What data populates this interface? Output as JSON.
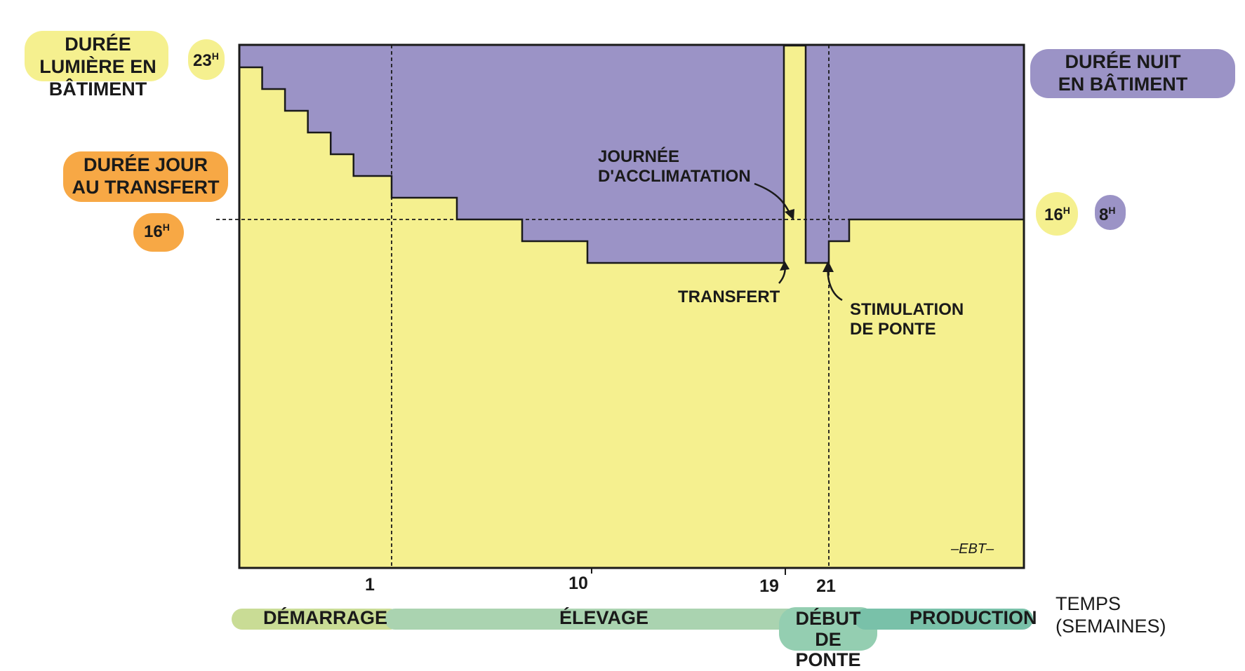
{
  "labels": {
    "light_title": "DURÉE LUMIÈRE EN BÂTIMENT",
    "night_title": "DURÉE NUIT EN BÂTIMENT",
    "day_at_transfer": "DURÉE JOUR AU TRANSFERT",
    "value_23": "23",
    "value_16_left": "16",
    "value_16_right": "16",
    "value_8": "8",
    "hour_suffix": "H",
    "acclimatation": "JOURNÉE D'ACCLIMATATION",
    "transfert": "TRANSFERT",
    "stimulation": "STIMULATION DE PONTE",
    "time_axis": "TEMPS (SEMAINES)",
    "signature": "–EBT–"
  },
  "phases": [
    {
      "name": "DÉMARRAGE",
      "color": "#c9dc95"
    },
    {
      "name": "ÉLEVAGE",
      "color": "#aad3b0"
    },
    {
      "name": "DÉBUT DE PONTE",
      "color": "#94ceb1"
    },
    {
      "name": "PRODUCTION",
      "color": "#79c1a9"
    }
  ],
  "colors": {
    "light": "#f5f08f",
    "night": "#9b93c6",
    "orange": "#f7a845",
    "yellow_tag": "#f5f08f",
    "purple_tag": "#9b93c6"
  },
  "chart_data": {
    "type": "area",
    "xlabel": "TEMPS (SEMAINES)",
    "ylabel": "DURÉE LUMIÈRE EN BÂTIMENT",
    "x_ticks": [
      "1",
      "10",
      "19",
      "21"
    ],
    "y_marks": [
      {
        "value": 23,
        "label": "23H"
      },
      {
        "value": 16,
        "label": "16H"
      }
    ],
    "y_range_hours": [
      0,
      24
    ],
    "series": [
      {
        "name": "DURÉE LUMIÈRE EN BÂTIMENT",
        "step_profile": [
          {
            "weeks_from": 0,
            "hours": 23
          },
          {
            "weeks_from": 0.15,
            "hours": 22
          },
          {
            "weeks_from": 0.3,
            "hours": 21
          },
          {
            "weeks_from": 0.45,
            "hours": 20
          },
          {
            "weeks_from": 0.6,
            "hours": 19
          },
          {
            "weeks_from": 0.75,
            "hours": 18
          },
          {
            "weeks_from": 1,
            "hours": 17
          },
          {
            "weeks_from": 4,
            "hours": 16
          },
          {
            "weeks_from": 7,
            "hours": 15
          },
          {
            "weeks_from": 10,
            "hours": 14
          },
          {
            "weeks_from": 19,
            "hours": 24
          },
          {
            "weeks_from": 19.5,
            "hours": 14
          },
          {
            "weeks_from": 21,
            "hours": 15
          },
          {
            "weeks_from": 22,
            "hours": 16
          }
        ]
      },
      {
        "name": "DURÉE NUIT EN BÂTIMENT",
        "complement_of": "DURÉE LUMIÈRE EN BÂTIMENT",
        "total_hours": 24
      }
    ],
    "reference_lines": [
      {
        "hours": 16,
        "label": "DURÉE JOUR AU TRANSFERT"
      }
    ],
    "annotations": [
      "JOURNÉE D'ACCLIMATATION",
      "TRANSFERT",
      "STIMULATION DE PONTE"
    ],
    "final_split": {
      "light_hours": 16,
      "night_hours": 8
    }
  }
}
